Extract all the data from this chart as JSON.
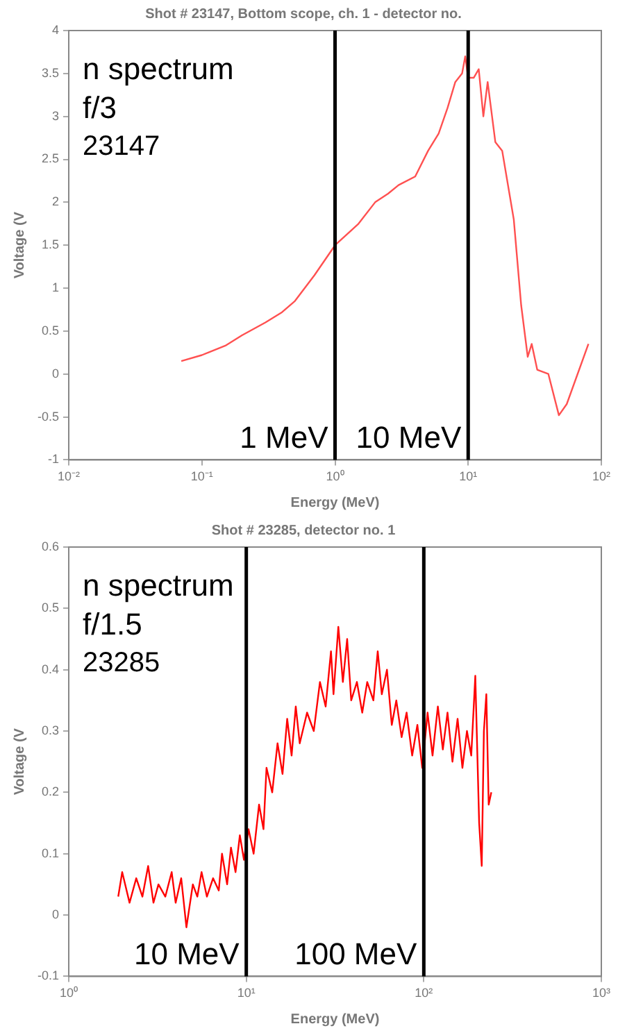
{
  "chart_data": [
    {
      "type": "line",
      "title": "Shot # 23147, Bottom scope, ch. 1 - detector no.",
      "xlabel": "Energy (MeV)",
      "ylabel": "Voltage (V",
      "log": "x",
      "grid": false,
      "legend": false,
      "marker": "none",
      "line_style": "solid",
      "xlim": [
        0.01,
        100
      ],
      "xticks": [
        {
          "value": 0.01,
          "label": "10⁻²"
        },
        {
          "value": 0.1,
          "label": "10⁻¹"
        },
        {
          "value": 1,
          "label": "10⁰"
        },
        {
          "value": 10,
          "label": "10¹"
        },
        {
          "value": 100,
          "label": "10²"
        }
      ],
      "ylim": [
        -1,
        4
      ],
      "yticks": [
        -1,
        -0.5,
        0,
        0.5,
        1,
        1.5,
        2,
        2.5,
        3,
        3.5,
        4
      ],
      "series": [
        {
          "color": "#ff5050",
          "x": [
            0.07,
            0.1,
            0.15,
            0.2,
            0.3,
            0.4,
            0.5,
            0.7,
            1,
            1.5,
            2,
            2.5,
            3,
            4,
            5,
            6,
            7,
            8,
            9,
            9.5,
            10,
            11,
            12,
            13,
            14,
            16,
            18,
            22,
            25,
            28,
            30,
            33,
            40,
            48,
            55,
            80
          ],
          "values": [
            0.15,
            0.22,
            0.33,
            0.45,
            0.6,
            0.72,
            0.85,
            1.15,
            1.5,
            1.75,
            2.0,
            2.1,
            2.2,
            2.3,
            2.6,
            2.8,
            3.1,
            3.4,
            3.5,
            3.7,
            3.45,
            3.45,
            3.55,
            3.0,
            3.4,
            2.7,
            2.6,
            1.8,
            0.8,
            0.2,
            0.35,
            0.05,
            0.0,
            -0.48,
            -0.35,
            0.35
          ]
        }
      ],
      "ref_lines": [
        {
          "axis": "x",
          "value": 1,
          "label": "1 MeV",
          "color": "#000000"
        },
        {
          "axis": "x",
          "value": 10,
          "label": "10 MeV",
          "color": "#000000"
        }
      ],
      "annotations": [
        "n spectrum",
        "f/3",
        "23147"
      ]
    },
    {
      "type": "line",
      "title": "Shot # 23285, detector no. 1",
      "xlabel": "Energy (MeV)",
      "ylabel": "Voltage (V",
      "log": "x",
      "grid": false,
      "legend": false,
      "marker": "none",
      "line_style": "solid",
      "xlim": [
        1,
        1000
      ],
      "xticks": [
        {
          "value": 1,
          "label": "10⁰"
        },
        {
          "value": 10,
          "label": "10¹"
        },
        {
          "value": 100,
          "label": "10²"
        },
        {
          "value": 1000,
          "label": "10³"
        }
      ],
      "ylim": [
        -0.1,
        0.6
      ],
      "yticks": [
        -0.1,
        0,
        0.1,
        0.2,
        0.3,
        0.4,
        0.5,
        0.6
      ],
      "series": [
        {
          "color": "#ff0000",
          "x": [
            1.9,
            2.0,
            2.2,
            2.4,
            2.6,
            2.8,
            3.0,
            3.2,
            3.5,
            3.8,
            4.0,
            4.3,
            4.6,
            5.0,
            5.3,
            5.6,
            6.0,
            6.5,
            7.0,
            7.3,
            7.8,
            8.2,
            8.7,
            9.2,
            9.7,
            10.3,
            11,
            11.8,
            12.5,
            13,
            14,
            15,
            16,
            17,
            18,
            19,
            20,
            22,
            24,
            26,
            28,
            30,
            31,
            33,
            35,
            37,
            39,
            42,
            45,
            48,
            52,
            55,
            58,
            62,
            66,
            70,
            75,
            80,
            86,
            92,
            98,
            105,
            112,
            120,
            128,
            136,
            145,
            155,
            165,
            175,
            185,
            195,
            205,
            212,
            218,
            225,
            232,
            240
          ],
          "values": [
            0.03,
            0.07,
            0.02,
            0.06,
            0.03,
            0.08,
            0.02,
            0.05,
            0.03,
            0.07,
            0.02,
            0.06,
            -0.02,
            0.05,
            0.03,
            0.07,
            0.03,
            0.06,
            0.04,
            0.1,
            0.05,
            0.11,
            0.07,
            0.13,
            0.09,
            0.14,
            0.1,
            0.18,
            0.14,
            0.24,
            0.2,
            0.28,
            0.23,
            0.32,
            0.26,
            0.34,
            0.28,
            0.33,
            0.3,
            0.38,
            0.34,
            0.43,
            0.36,
            0.47,
            0.38,
            0.45,
            0.35,
            0.38,
            0.33,
            0.38,
            0.35,
            0.43,
            0.36,
            0.4,
            0.31,
            0.35,
            0.29,
            0.33,
            0.26,
            0.31,
            0.24,
            0.33,
            0.26,
            0.34,
            0.27,
            0.33,
            0.25,
            0.32,
            0.24,
            0.3,
            0.26,
            0.39,
            0.15,
            0.08,
            0.3,
            0.36,
            0.18,
            0.2
          ]
        }
      ],
      "ref_lines": [
        {
          "axis": "x",
          "value": 10,
          "label": "10 MeV",
          "color": "#000000"
        },
        {
          "axis": "x",
          "value": 100,
          "label": "100 MeV",
          "color": "#000000"
        }
      ],
      "annotations": [
        "n spectrum",
        "f/1.5",
        "23285"
      ]
    }
  ]
}
